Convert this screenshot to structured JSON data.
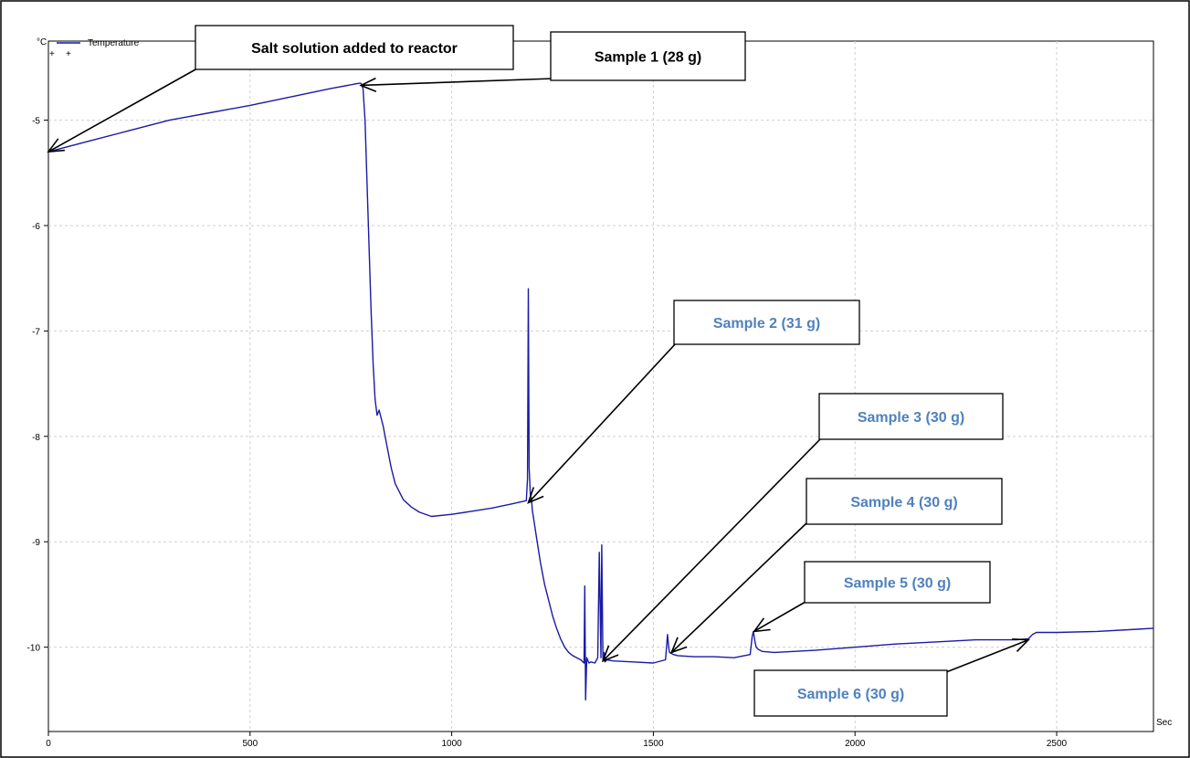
{
  "chart_data": {
    "type": "line",
    "title": "",
    "xlabel": "",
    "ylabel": "",
    "x_unit": "Sec",
    "y_unit": "°C",
    "xlim": [
      0,
      2740
    ],
    "ylim": [
      -10.8,
      -4.25
    ],
    "x_ticks": [
      0,
      500,
      1000,
      1500,
      2000,
      2500
    ],
    "y_ticks": [
      -5,
      -6,
      -7,
      -8,
      -9,
      -10
    ],
    "grid": true,
    "legend": {
      "placement": "top-left",
      "entries": [
        "Temperature"
      ]
    },
    "series_color": "#1a1aa6",
    "series": [
      {
        "name": "Temperature",
        "x": [
          0,
          100,
          200,
          300,
          400,
          500,
          600,
          700,
          770,
          775,
          780,
          785,
          790,
          795,
          800,
          805,
          810,
          815,
          820,
          830,
          840,
          850,
          860,
          880,
          900,
          920,
          950,
          1000,
          1050,
          1100,
          1150,
          1185,
          1188,
          1190,
          1192,
          1195,
          1198,
          1200,
          1210,
          1220,
          1230,
          1240,
          1250,
          1260,
          1270,
          1280,
          1290,
          1300,
          1310,
          1320,
          1328,
          1330,
          1332,
          1335,
          1338,
          1340,
          1345,
          1355,
          1362,
          1366,
          1370,
          1372,
          1375,
          1378,
          1380,
          1385,
          1400,
          1450,
          1500,
          1530,
          1535,
          1538,
          1540,
          1545,
          1550,
          1560,
          1600,
          1650,
          1700,
          1740,
          1745,
          1748,
          1752,
          1755,
          1760,
          1770,
          1800,
          1900,
          2000,
          2100,
          2200,
          2300,
          2400,
          2430,
          2440,
          2450,
          2500,
          2600,
          2700,
          2740
        ],
        "y": [
          -5.3,
          -5.2,
          -5.1,
          -5.0,
          -4.93,
          -4.86,
          -4.78,
          -4.7,
          -4.65,
          -4.65,
          -4.7,
          -5.0,
          -5.6,
          -6.2,
          -6.8,
          -7.3,
          -7.65,
          -7.8,
          -7.75,
          -7.9,
          -8.1,
          -8.3,
          -8.45,
          -8.6,
          -8.67,
          -8.72,
          -8.76,
          -8.74,
          -8.71,
          -8.68,
          -8.64,
          -8.61,
          -8.4,
          -6.6,
          -8.3,
          -8.55,
          -8.6,
          -8.7,
          -8.95,
          -9.2,
          -9.4,
          -9.55,
          -9.7,
          -9.82,
          -9.92,
          -10.0,
          -10.05,
          -10.08,
          -10.1,
          -10.12,
          -10.15,
          -9.42,
          -10.5,
          -10.1,
          -10.13,
          -10.15,
          -10.14,
          -10.15,
          -10.1,
          -9.1,
          -10.1,
          -9.03,
          -10.12,
          -10.05,
          -10.14,
          -10.12,
          -10.13,
          -10.14,
          -10.15,
          -10.12,
          -9.88,
          -10.0,
          -10.05,
          -10.06,
          -10.07,
          -10.08,
          -10.09,
          -10.09,
          -10.1,
          -10.07,
          -9.9,
          -9.85,
          -9.95,
          -10.0,
          -10.02,
          -10.04,
          -10.05,
          -10.03,
          -10.0,
          -9.97,
          -9.95,
          -9.93,
          -9.93,
          -9.92,
          -9.88,
          -9.86,
          -9.86,
          -9.85,
          -9.83,
          -9.82
        ]
      }
    ],
    "annotations": [
      {
        "label": "Salt solution added to reactor",
        "x": 0,
        "y": -5.3,
        "color": "#000000"
      },
      {
        "label": "Sample 1 (28 g)",
        "x": 775,
        "y": -4.67,
        "color": "#000000"
      },
      {
        "label": "Sample 2 (31 g)",
        "x": 1190,
        "y": -8.63,
        "color": "#4f81bd"
      },
      {
        "label": "Sample 3 (30 g)",
        "x": 1375,
        "y": -10.13,
        "color": "#4f81bd"
      },
      {
        "label": "Sample 4 (30 g)",
        "x": 1545,
        "y": -10.05,
        "color": "#4f81bd"
      },
      {
        "label": "Sample 5 (30 g)",
        "x": 1750,
        "y": -9.85,
        "color": "#4f81bd"
      },
      {
        "label": "Sample 6 (30 g)",
        "x": 2430,
        "y": -9.93,
        "color": "#4f81bd"
      }
    ]
  }
}
